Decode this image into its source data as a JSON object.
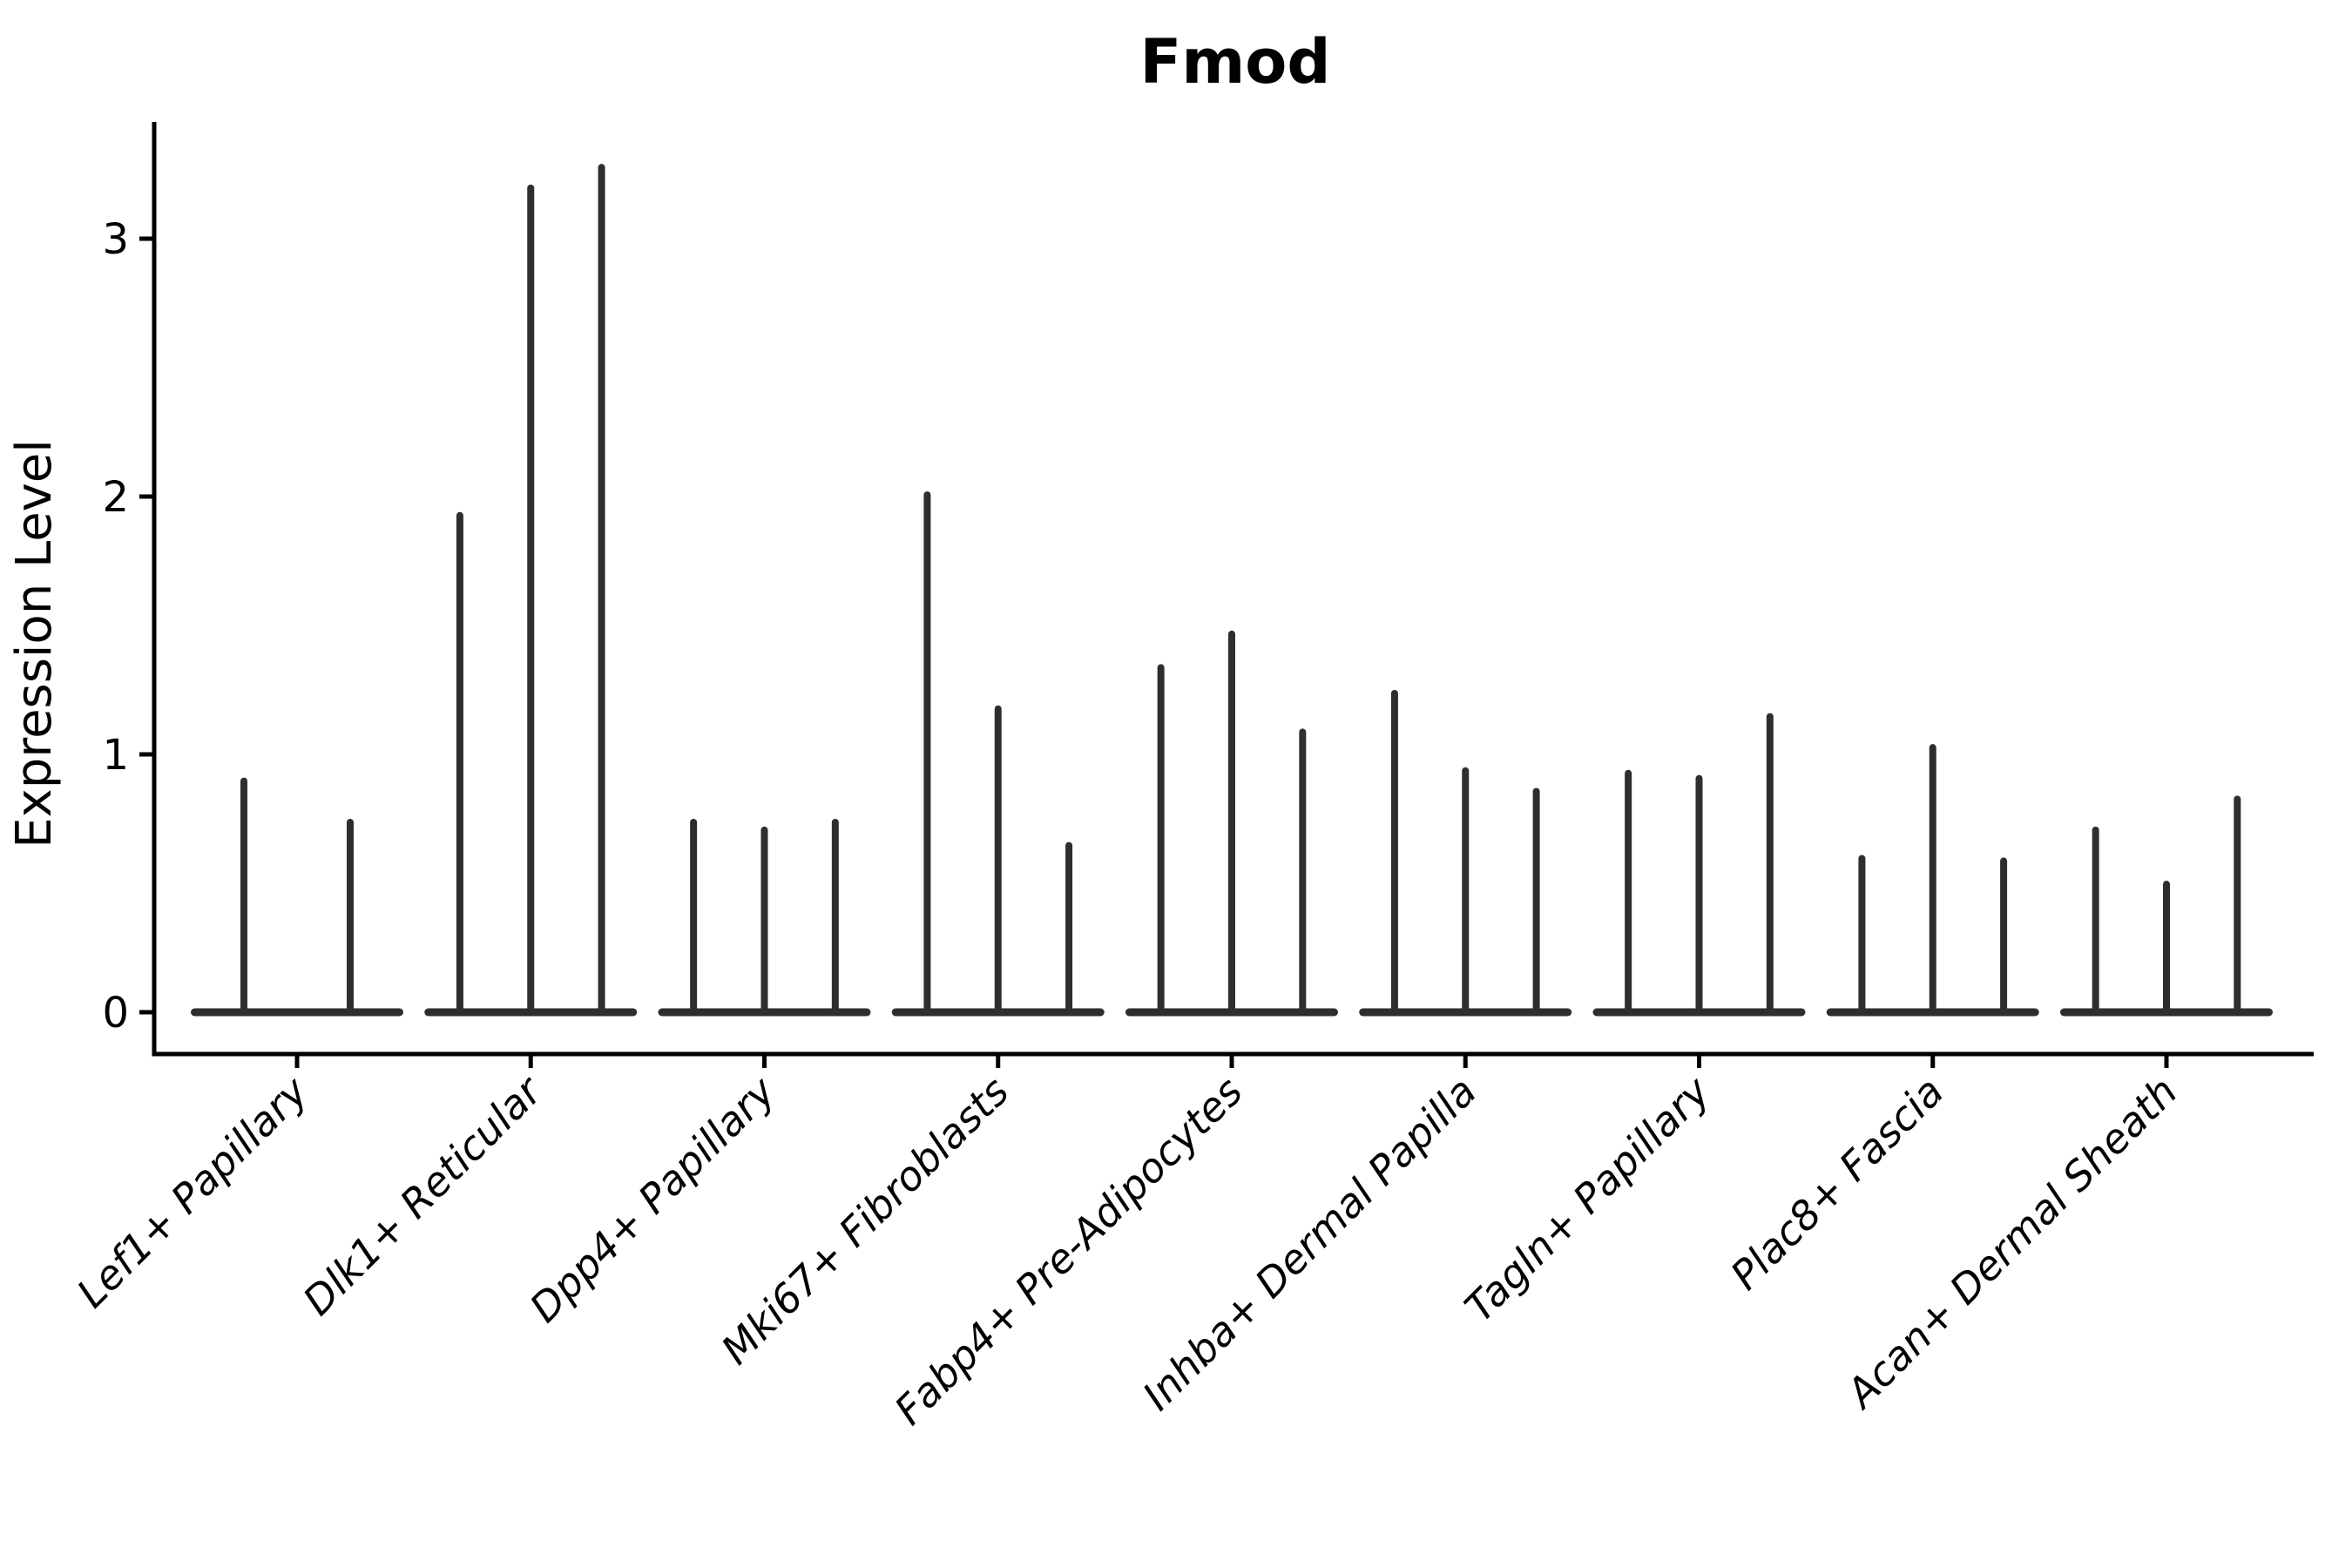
{
  "page": {
    "background": "#ffffff"
  },
  "chart_data": {
    "type": "violin",
    "title": "Fmod",
    "ylabel": "Expression Level",
    "xlabel": "",
    "yticks": [
      "0",
      "1",
      "2",
      "3"
    ],
    "ylim": [
      -0.16,
      3.45
    ],
    "grid": false,
    "legend_position": "none",
    "violin_style": "ultra-thin spikes rising from a flat base at 0 (max-value tails, bulk of distribution at 0)",
    "ink_color": "#2e2e2e",
    "axis_color": "#000000",
    "categories": [
      "Lef1+ Papillary",
      "Dlk1+ Reticular",
      "Dpp4+ Papillary",
      "Mki67+ Fibroblasts",
      "Fabp4+ Pre-Adipocytes",
      "Inhba+ Dermal Papilla",
      "Tagln+ Papillary",
      "Plac8+ Fascia",
      "Acan+ Dermal Sheath"
    ],
    "groups": [
      {
        "category": "Lef1+ Papillary",
        "violin_maxima": [
          0.91,
          0.75
        ]
      },
      {
        "category": "Dlk1+ Reticular",
        "violin_maxima": [
          1.94,
          3.21,
          3.29
        ]
      },
      {
        "category": "Dpp4+ Papillary",
        "violin_maxima": [
          0.75,
          0.72,
          0.75
        ]
      },
      {
        "category": "Mki67+ Fibroblasts",
        "violin_maxima": [
          2.02,
          1.19,
          0.66
        ]
      },
      {
        "category": "Fabp4+ Pre-Adipocytes",
        "violin_maxima": [
          1.35,
          1.48,
          1.1
        ]
      },
      {
        "category": "Inhba+ Dermal Papilla",
        "violin_maxima": [
          1.25,
          0.95,
          0.87
        ]
      },
      {
        "category": "Tagln+ Papillary",
        "violin_maxima": [
          0.94,
          0.92,
          1.16
        ]
      },
      {
        "category": "Plac8+ Fascia",
        "violin_maxima": [
          0.61,
          1.04,
          0.6
        ]
      },
      {
        "category": "Acan+ Dermal Sheath",
        "violin_maxima": [
          0.72,
          0.51,
          0.84
        ]
      }
    ]
  }
}
